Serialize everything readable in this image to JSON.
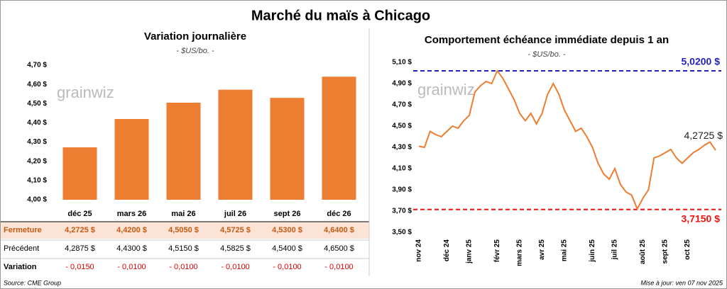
{
  "title": "Marché du maïs à Chicago",
  "watermark": "grainwiz",
  "source": "Source: CME Group",
  "updated": "Mise à jour: ven 07 nov 2025",
  "chart_data": [
    {
      "type": "bar",
      "title": "Variation journalière",
      "subtitle": "- $US/bo. -",
      "categories": [
        "déc 25",
        "mars 26",
        "mai 26",
        "juil 26",
        "sept 26",
        "déc 26"
      ],
      "values": [
        4.2725,
        4.42,
        4.505,
        4.5725,
        4.53,
        4.64
      ],
      "color": "#ed7d31",
      "grid": false,
      "ylim": [
        4.0,
        4.7
      ],
      "yticks": [
        {
          "value": 4.0,
          "label": "4,00 $"
        },
        {
          "value": 4.1,
          "label": "4,10 $"
        },
        {
          "value": 4.2,
          "label": "4,20 $"
        },
        {
          "value": 4.3,
          "label": "4,30 $"
        },
        {
          "value": 4.4,
          "label": "4,40 $"
        },
        {
          "value": 4.5,
          "label": "4,50 $"
        },
        {
          "value": 4.6,
          "label": "4,60 $"
        },
        {
          "value": 4.7,
          "label": "4,70 $"
        }
      ]
    },
    {
      "type": "line",
      "title": "Comportement échéance immédiate depuis 1 an",
      "subtitle": "- $US/bo. -",
      "categories": [
        "nov 24",
        null,
        null,
        null,
        null,
        "déc 24",
        null,
        null,
        null,
        "janv 25",
        null,
        null,
        null,
        null,
        "févr 25",
        null,
        null,
        null,
        "mars 25",
        null,
        null,
        null,
        "avr 25",
        null,
        null,
        null,
        "mai 25",
        null,
        null,
        null,
        null,
        "juin 25",
        null,
        null,
        null,
        "juil 25",
        null,
        null,
        null,
        null,
        "août 25",
        null,
        null,
        null,
        "sept 25",
        null,
        null,
        null,
        "oct 25",
        null,
        null,
        null,
        null,
        null
      ],
      "values": [
        4.31,
        4.3,
        4.45,
        4.42,
        4.4,
        4.45,
        4.5,
        4.48,
        4.55,
        4.6,
        4.82,
        4.88,
        4.92,
        4.9,
        5.02,
        4.95,
        4.85,
        4.75,
        4.62,
        4.55,
        4.62,
        4.52,
        4.62,
        4.8,
        4.9,
        4.8,
        4.65,
        4.55,
        4.45,
        4.48,
        4.4,
        4.3,
        4.15,
        4.05,
        4.0,
        4.1,
        3.95,
        3.88,
        3.85,
        3.72,
        3.82,
        3.9,
        4.2,
        4.22,
        4.25,
        4.28,
        4.2,
        4.15,
        4.2,
        4.25,
        4.28,
        4.32,
        4.35,
        4.2725
      ],
      "end_label": "4,2725 $",
      "color": "#ed7d31",
      "grid": false,
      "ylim": [
        3.5,
        5.1
      ],
      "yticks": [
        {
          "value": 3.5,
          "label": "3,50 $"
        },
        {
          "value": 3.7,
          "label": "3,70 $"
        },
        {
          "value": 3.9,
          "label": "3,90 $"
        },
        {
          "value": 4.1,
          "label": "4,10 $"
        },
        {
          "value": 4.3,
          "label": "4,30 $"
        },
        {
          "value": 4.5,
          "label": "4,50 $"
        },
        {
          "value": 4.7,
          "label": "4,70 $"
        },
        {
          "value": 4.9,
          "label": "4,90 $"
        },
        {
          "value": 5.1,
          "label": "5,10 $"
        }
      ],
      "reference_lines": [
        {
          "value": 5.02,
          "label": "5,0200 $",
          "color": "#2222bb"
        },
        {
          "value": 3.715,
          "label": "3,7150 $",
          "color": "#ee1111"
        }
      ]
    }
  ],
  "table": {
    "rows": [
      {
        "label": "Fermeture",
        "cells": [
          "4,2725 $",
          "4,4200 $",
          "4,5050 $",
          "4,5725 $",
          "4,5300 $",
          "4,6400 $"
        ]
      },
      {
        "label": "Précédent",
        "cells": [
          "4,2875 $",
          "4,4300 $",
          "4,5150 $",
          "4,5825 $",
          "4,5400 $",
          "4,6500 $"
        ]
      },
      {
        "label": "Variation",
        "cells": [
          "- 0,0150",
          "- 0,0100",
          "- 0,0100",
          "- 0,0100",
          "- 0,0100",
          "- 0,0100"
        ]
      }
    ]
  }
}
